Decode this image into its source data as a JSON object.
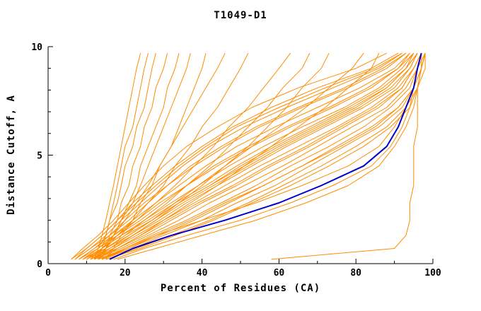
{
  "chart_data": {
    "type": "line",
    "title": "T1049-D1",
    "xlabel": "Percent of Residues (CA)",
    "ylabel": "Distance Cutoff, A",
    "xlim": [
      0,
      100
    ],
    "ylim": [
      0,
      10
    ],
    "x_ticks": [
      0,
      20,
      40,
      60,
      80,
      100
    ],
    "y_ticks": [
      0,
      5,
      10
    ],
    "x_minor_step": 10,
    "y_minor_step": 1,
    "grid": "off",
    "legend": "none",
    "axis_color": "#000000",
    "cutoffs": [
      0.2,
      0.7,
      1.3,
      2.0,
      2.8,
      3.6,
      4.5,
      5.4,
      6.3,
      7.2,
      8.1,
      9.0,
      9.7
    ],
    "series": [
      {
        "name": "model-curves",
        "color": "#ff8c00",
        "width": 1,
        "curves": [
          [
            12,
            13,
            14,
            15,
            16,
            17,
            18,
            19,
            20,
            21,
            22,
            23,
            24
          ],
          [
            13,
            14,
            15,
            16,
            17,
            18,
            19,
            20,
            22,
            23,
            24,
            25,
            26
          ],
          [
            12,
            13,
            15,
            16,
            18,
            19,
            20,
            22,
            23,
            25,
            26,
            27,
            28
          ],
          [
            13,
            15,
            16,
            18,
            19,
            21,
            22,
            24,
            25,
            27,
            28,
            30,
            31
          ],
          [
            14,
            15,
            17,
            19,
            21,
            23,
            24,
            26,
            28,
            30,
            31,
            33,
            34
          ],
          [
            13,
            15,
            17,
            19,
            22,
            24,
            26,
            28,
            30,
            32,
            34,
            36,
            37
          ],
          [
            15,
            17,
            19,
            22,
            24,
            27,
            29,
            32,
            34,
            36,
            38,
            40,
            41
          ],
          [
            12,
            14,
            17,
            20,
            23,
            26,
            29,
            32,
            35,
            38,
            41,
            44,
            46
          ],
          [
            13,
            15,
            18,
            22,
            26,
            30,
            33,
            37,
            40,
            44,
            47,
            50,
            52
          ],
          [
            11,
            14,
            18,
            23,
            28,
            33,
            38,
            43,
            47,
            52,
            56,
            60,
            63
          ],
          [
            12,
            15,
            20,
            25,
            31,
            36,
            42,
            47,
            52,
            57,
            61,
            66,
            68
          ],
          [
            13,
            17,
            22,
            28,
            34,
            40,
            46,
            52,
            57,
            62,
            66,
            71,
            73
          ],
          [
            12,
            16,
            21,
            27,
            33,
            39,
            46,
            53,
            60,
            67,
            73,
            79,
            82
          ],
          [
            14,
            18,
            24,
            30,
            37,
            44,
            51,
            58,
            65,
            72,
            78,
            84,
            86
          ],
          [
            6,
            10,
            14,
            18,
            22,
            27,
            33,
            40,
            48,
            58,
            70,
            84,
            91
          ],
          [
            7,
            11,
            15,
            19,
            24,
            29,
            35,
            42,
            51,
            62,
            74,
            86,
            92
          ],
          [
            8,
            12,
            16,
            21,
            26,
            31,
            38,
            46,
            55,
            66,
            78,
            88,
            93
          ],
          [
            8,
            13,
            17,
            22,
            28,
            34,
            41,
            49,
            59,
            70,
            81,
            90,
            94
          ],
          [
            9,
            13,
            18,
            24,
            30,
            36,
            44,
            53,
            63,
            74,
            84,
            91,
            95
          ],
          [
            10,
            14,
            19,
            25,
            32,
            39,
            47,
            56,
            66,
            77,
            86,
            92,
            95
          ],
          [
            10,
            15,
            21,
            27,
            34,
            42,
            50,
            59,
            69,
            79,
            88,
            93,
            96
          ],
          [
            11,
            16,
            22,
            29,
            36,
            44,
            53,
            62,
            72,
            82,
            90,
            94,
            96
          ],
          [
            11,
            17,
            23,
            30,
            38,
            46,
            55,
            65,
            75,
            84,
            91,
            95,
            97
          ],
          [
            12,
            18,
            25,
            32,
            40,
            49,
            58,
            68,
            77,
            86,
            92,
            95,
            97
          ],
          [
            12,
            19,
            26,
            34,
            42,
            51,
            61,
            70,
            79,
            88,
            93,
            96,
            97
          ],
          [
            13,
            20,
            27,
            36,
            45,
            54,
            63,
            73,
            82,
            89,
            94,
            96,
            98
          ],
          [
            13,
            21,
            29,
            38,
            47,
            56,
            66,
            75,
            84,
            91,
            95,
            97,
            98
          ],
          [
            14,
            22,
            30,
            40,
            49,
            59,
            68,
            77,
            86,
            92,
            95,
            97,
            98
          ],
          [
            15,
            23,
            32,
            42,
            52,
            61,
            71,
            80,
            88,
            93,
            96,
            97,
            98
          ],
          [
            6,
            9,
            13,
            17,
            21,
            25,
            30,
            36,
            44,
            53,
            65,
            80,
            88
          ],
          [
            7,
            10,
            14,
            18,
            23,
            28,
            34,
            41,
            49,
            60,
            72,
            85,
            92
          ],
          [
            9,
            14,
            19,
            26,
            33,
            41,
            49,
            58,
            68,
            78,
            87,
            93,
            96
          ],
          [
            14,
            21,
            28,
            37,
            46,
            56,
            66,
            76,
            85,
            91,
            95,
            97,
            98
          ],
          [
            8,
            12,
            17,
            23,
            29,
            36,
            43,
            52,
            62,
            73,
            83,
            91,
            94
          ],
          [
            10,
            16,
            22,
            28,
            35,
            43,
            52,
            61,
            71,
            81,
            89,
            94,
            96
          ],
          [
            15,
            24,
            33,
            43,
            53,
            63,
            73,
            82,
            89,
            94,
            96,
            98,
            98
          ],
          [
            7,
            11,
            16,
            20,
            25,
            31,
            37,
            45,
            54,
            65,
            77,
            87,
            93
          ],
          [
            11,
            18,
            24,
            31,
            39,
            48,
            57,
            67,
            76,
            85,
            92,
            95,
            97
          ],
          [
            9,
            15,
            20,
            27,
            34,
            42,
            51,
            60,
            70,
            80,
            88,
            93,
            95
          ],
          [
            17,
            25,
            36,
            50,
            63,
            74,
            84,
            89,
            92,
            94,
            95,
            96,
            97
          ],
          [
            18,
            28,
            40,
            54,
            67,
            78,
            86,
            90,
            93,
            95,
            96,
            97,
            98
          ],
          [
            14,
            20,
            28,
            40,
            54,
            66,
            78,
            86,
            90,
            93,
            95,
            96,
            97
          ],
          [
            58,
            90,
            93,
            94,
            94,
            95,
            95,
            95,
            96,
            96,
            96,
            97,
            97
          ]
        ]
      },
      {
        "name": "highlighted-model-curve",
        "color": "#0000cd",
        "width": 2,
        "curves": [
          [
            16,
            22,
            32,
            46,
            60,
            71,
            82,
            88,
            91,
            93,
            95,
            96,
            97
          ]
        ]
      }
    ]
  }
}
